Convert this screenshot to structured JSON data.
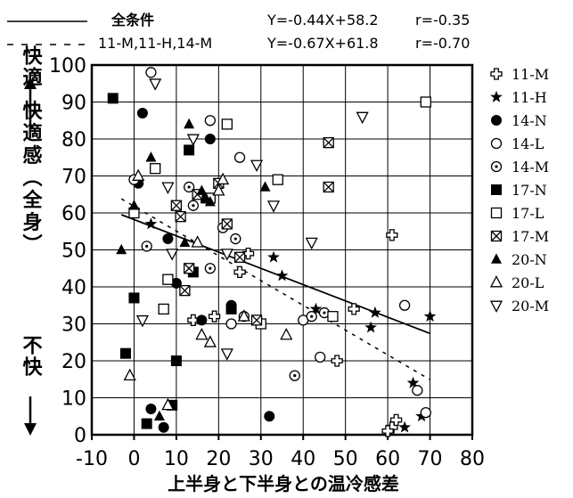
{
  "chart_data": {
    "type": "scatter",
    "xlabel": "上半身と下半身との温冷感差",
    "ylabel": "快適感（全身）",
    "ylabel_top": "快適",
    "ylabel_bottom": "不快",
    "xlim": [
      -10,
      80
    ],
    "ylim": [
      0,
      100
    ],
    "xticks": [
      "-10",
      "0",
      "10",
      "20",
      "30",
      "40",
      "50",
      "60",
      "70",
      "80"
    ],
    "yticks": [
      "0",
      "10",
      "20",
      "30",
      "40",
      "50",
      "60",
      "70",
      "80",
      "90",
      "100"
    ],
    "grid": true,
    "legend_position": "right",
    "regressions": [
      {
        "name": "全条件",
        "equation": "Y=-0.44X+58.2",
        "r": "r=-0.35",
        "style": "solid",
        "slope": -0.44,
        "intercept": 58.2,
        "x_range": [
          -3,
          70
        ]
      },
      {
        "name": "11-M,11-H,14-M",
        "equation": "Y=-0.67X+61.8",
        "r": "r=-0.70",
        "style": "dashed",
        "slope": -0.67,
        "intercept": 61.8,
        "x_range": [
          -3,
          70
        ]
      }
    ],
    "series": [
      {
        "name": "11-M",
        "marker": "cross-open",
        "points": [
          [
            27,
            49
          ],
          [
            25,
            44
          ],
          [
            19,
            32
          ],
          [
            52,
            34
          ],
          [
            48,
            20
          ],
          [
            61,
            54
          ],
          [
            61,
            2
          ],
          [
            60,
            1
          ],
          [
            62,
            4
          ],
          [
            14,
            31
          ]
        ]
      },
      {
        "name": "11-H",
        "marker": "star",
        "points": [
          [
            4,
            57
          ],
          [
            33,
            48
          ],
          [
            35,
            43
          ],
          [
            43,
            34
          ],
          [
            57,
            33
          ],
          [
            56,
            29
          ],
          [
            70,
            32
          ],
          [
            66,
            14
          ],
          [
            68,
            5
          ],
          [
            64,
            2
          ]
        ]
      },
      {
        "name": "14-N",
        "marker": "circle-filled",
        "points": [
          [
            1,
            68
          ],
          [
            2,
            87
          ],
          [
            4,
            7
          ],
          [
            7,
            2
          ],
          [
            8,
            53
          ],
          [
            10,
            41
          ],
          [
            16,
            31
          ],
          [
            18,
            80
          ],
          [
            23,
            35
          ],
          [
            32,
            5
          ]
        ]
      },
      {
        "name": "14-L",
        "marker": "circle-open",
        "points": [
          [
            4,
            98
          ],
          [
            18,
            85
          ],
          [
            23,
            30
          ],
          [
            25,
            75
          ],
          [
            40,
            31
          ],
          [
            44,
            21
          ],
          [
            64,
            35
          ],
          [
            67,
            12
          ],
          [
            69,
            6
          ],
          [
            0,
            69
          ]
        ]
      },
      {
        "name": "14-M",
        "marker": "circle-dot",
        "points": [
          [
            3,
            51
          ],
          [
            14,
            62
          ],
          [
            13,
            67
          ],
          [
            18,
            45
          ],
          [
            21,
            56
          ],
          [
            24,
            53
          ],
          [
            26,
            32
          ],
          [
            42,
            32
          ],
          [
            45,
            33
          ],
          [
            38,
            16
          ]
        ]
      },
      {
        "name": "17-N",
        "marker": "square-filled",
        "points": [
          [
            -5,
            91
          ],
          [
            0,
            37
          ],
          [
            3,
            3
          ],
          [
            9,
            8
          ],
          [
            10,
            20
          ],
          [
            13,
            77
          ],
          [
            14,
            44
          ],
          [
            17,
            64
          ],
          [
            23,
            34
          ],
          [
            -2,
            22
          ]
        ]
      },
      {
        "name": "17-L",
        "marker": "square-open",
        "points": [
          [
            5,
            72
          ],
          [
            7,
            34
          ],
          [
            8,
            42
          ],
          [
            22,
            84
          ],
          [
            34,
            69
          ],
          [
            47,
            32
          ],
          [
            69,
            90
          ],
          [
            0,
            60
          ],
          [
            30,
            30
          ],
          [
            18,
            64
          ]
        ]
      },
      {
        "name": "17-M",
        "marker": "square-x",
        "points": [
          [
            10,
            62
          ],
          [
            11,
            59
          ],
          [
            12,
            39
          ],
          [
            13,
            45
          ],
          [
            15,
            65
          ],
          [
            20,
            68
          ],
          [
            22,
            57
          ],
          [
            25,
            48
          ],
          [
            29,
            31
          ],
          [
            46,
            67
          ],
          [
            46,
            79
          ]
        ]
      },
      {
        "name": "20-N",
        "marker": "triangle-filled",
        "points": [
          [
            -3,
            50
          ],
          [
            0,
            62
          ],
          [
            4,
            75
          ],
          [
            12,
            52
          ],
          [
            13,
            84
          ],
          [
            16,
            66
          ],
          [
            17,
            64
          ],
          [
            18,
            63
          ],
          [
            31,
            67
          ],
          [
            6,
            5
          ]
        ]
      },
      {
        "name": "20-L",
        "marker": "triangle-open",
        "points": [
          [
            -1,
            16
          ],
          [
            8,
            8
          ],
          [
            15,
            52
          ],
          [
            16,
            27
          ],
          [
            18,
            25
          ],
          [
            20,
            66
          ],
          [
            21,
            69
          ],
          [
            26,
            32
          ],
          [
            36,
            27
          ],
          [
            1,
            70
          ]
        ]
      },
      {
        "name": "20-M",
        "marker": "triangle-open-down",
        "points": [
          [
            2,
            31
          ],
          [
            5,
            95
          ],
          [
            8,
            67
          ],
          [
            14,
            80
          ],
          [
            22,
            49
          ],
          [
            29,
            73
          ],
          [
            33,
            62
          ],
          [
            42,
            52
          ],
          [
            54,
            86
          ],
          [
            22,
            22
          ],
          [
            9,
            49
          ]
        ]
      }
    ]
  }
}
